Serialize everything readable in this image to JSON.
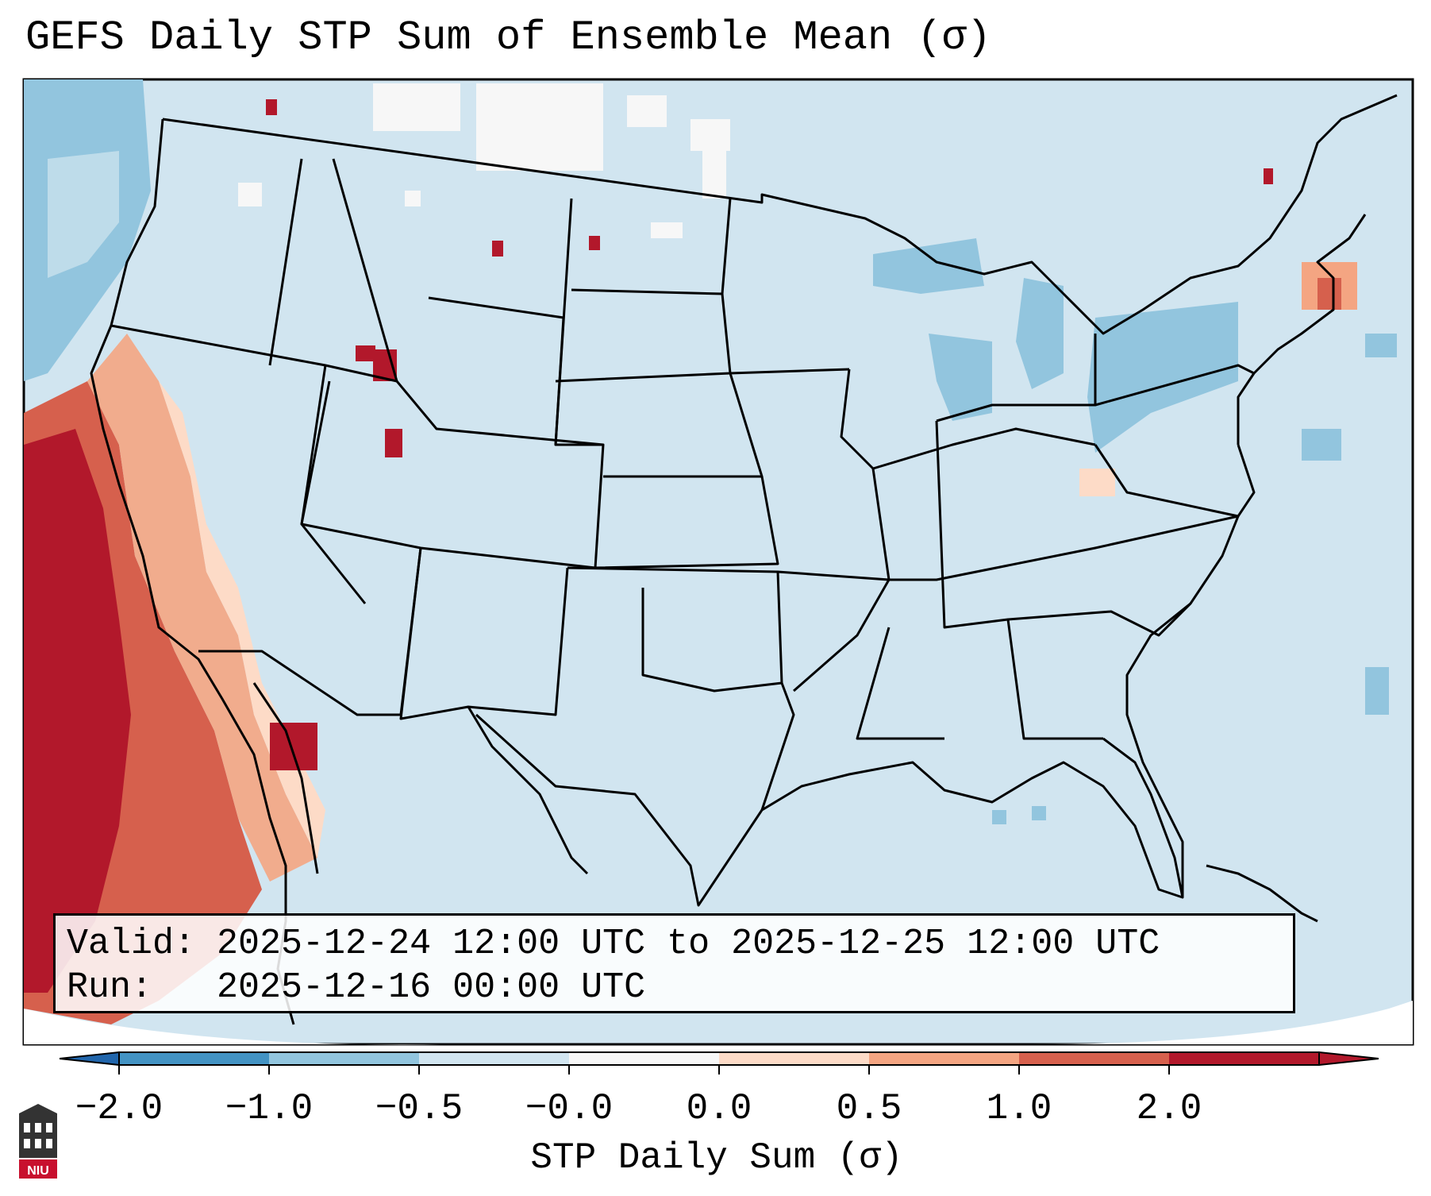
{
  "title": "GEFS Daily STP Sum of Ensemble Mean (σ)",
  "info": {
    "valid_line": "Valid: 2025-12-24 12:00 UTC to 2025-12-25 12:00 UTC",
    "run_line": "Run:   2025-12-16 00:00 UTC"
  },
  "colorbar": {
    "label": "STP Daily Sum (σ)",
    "ticks": [
      "−2.0",
      "−1.0",
      "−0.5",
      "−0.0",
      "0.0",
      "0.5",
      "1.0",
      "2.0"
    ],
    "colors": [
      "#4393c3",
      "#92c5de",
      "#d1e5f0",
      "#f7f7f7",
      "#fddbc7",
      "#f4a582",
      "#d6604d",
      "#b2182b"
    ],
    "under_color": "#2166ac",
    "over_color": "#b2182b"
  },
  "map": {
    "background_color": "#d1e5f0",
    "land_boundary_color": "#000000",
    "region": "CONUS"
  },
  "logo": {
    "text": "NIU",
    "color": "#c8102e"
  }
}
